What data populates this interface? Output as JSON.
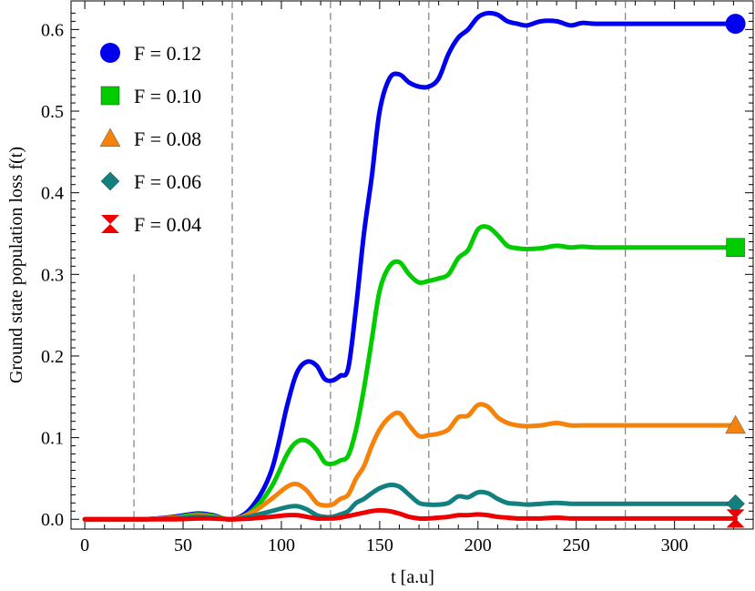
{
  "chart_data": {
    "type": "line",
    "title": "",
    "xlabel": "t  [a.u]",
    "ylabel": "Ground state population  loss  f(t)",
    "xlim": [
      -7,
      340
    ],
    "ylim": [
      -0.012,
      0.635
    ],
    "xticks": [
      0,
      50,
      100,
      150,
      200,
      250,
      300
    ],
    "xtick_labels": [
      "0",
      "50",
      "100",
      "150",
      "200",
      "250",
      "300"
    ],
    "yticks": [
      0.0,
      0.1,
      0.2,
      0.3,
      0.4,
      0.5,
      0.6
    ],
    "ytick_labels": [
      "0.0",
      "0.1",
      "0.2",
      "0.3",
      "0.4",
      "0.5",
      "0.6"
    ],
    "vlines": [
      25,
      75,
      125,
      175,
      225,
      275
    ],
    "grid": false,
    "legend_position": "top-left",
    "series": [
      {
        "name": "F = 0.12",
        "color": "#0000ee",
        "marker": "circle",
        "x": [
          0,
          30,
          45,
          57,
          65,
          75,
          85,
          95,
          103,
          108,
          113,
          118,
          122,
          126,
          130,
          134,
          138,
          142,
          146,
          150,
          155,
          160,
          165,
          170,
          175,
          180,
          185,
          190,
          195,
          200,
          205,
          210,
          215,
          220,
          225,
          232,
          240,
          247,
          253,
          260,
          280,
          300,
          331
        ],
        "values": [
          0.0,
          0.0,
          0.003,
          0.007,
          0.005,
          0.0,
          0.015,
          0.06,
          0.14,
          0.18,
          0.193,
          0.188,
          0.172,
          0.17,
          0.176,
          0.185,
          0.26,
          0.35,
          0.42,
          0.5,
          0.54,
          0.545,
          0.535,
          0.53,
          0.53,
          0.54,
          0.57,
          0.59,
          0.6,
          0.615,
          0.62,
          0.618,
          0.61,
          0.607,
          0.605,
          0.61,
          0.61,
          0.605,
          0.608,
          0.607,
          0.607,
          0.607,
          0.607
        ]
      },
      {
        "name": "F = 0.10",
        "color": "#00cc00",
        "marker": "square",
        "x": [
          0,
          30,
          45,
          57,
          65,
          75,
          85,
          95,
          103,
          108,
          113,
          118,
          122,
          126,
          130,
          134,
          138,
          142,
          146,
          150,
          155,
          160,
          165,
          170,
          175,
          180,
          185,
          190,
          195,
          200,
          205,
          210,
          215,
          220,
          225,
          232,
          240,
          247,
          253,
          260,
          280,
          300,
          331
        ],
        "values": [
          0.0,
          0.0,
          0.002,
          0.006,
          0.004,
          0.0,
          0.01,
          0.04,
          0.08,
          0.095,
          0.096,
          0.085,
          0.07,
          0.068,
          0.072,
          0.078,
          0.11,
          0.16,
          0.22,
          0.28,
          0.31,
          0.315,
          0.3,
          0.29,
          0.292,
          0.295,
          0.3,
          0.32,
          0.33,
          0.355,
          0.358,
          0.348,
          0.335,
          0.332,
          0.331,
          0.332,
          0.335,
          0.333,
          0.334,
          0.333,
          0.333,
          0.333,
          0.333
        ]
      },
      {
        "name": "F = 0.08",
        "color": "#f5820a",
        "marker": "triangle",
        "x": [
          0,
          30,
          45,
          57,
          65,
          75,
          85,
          95,
          103,
          108,
          113,
          118,
          122,
          126,
          130,
          134,
          138,
          142,
          146,
          150,
          155,
          160,
          165,
          170,
          175,
          180,
          185,
          190,
          195,
          200,
          205,
          210,
          215,
          220,
          225,
          232,
          240,
          247,
          253,
          260,
          280,
          300,
          331
        ],
        "values": [
          0.0,
          0.0,
          0.002,
          0.004,
          0.003,
          0.0,
          0.008,
          0.025,
          0.04,
          0.043,
          0.035,
          0.02,
          0.017,
          0.018,
          0.025,
          0.03,
          0.05,
          0.065,
          0.09,
          0.11,
          0.125,
          0.13,
          0.115,
          0.102,
          0.103,
          0.105,
          0.11,
          0.125,
          0.127,
          0.14,
          0.138,
          0.125,
          0.118,
          0.115,
          0.114,
          0.115,
          0.118,
          0.115,
          0.115,
          0.115,
          0.115,
          0.115,
          0.115
        ]
      },
      {
        "name": "F = 0.06",
        "color": "#12807e",
        "marker": "diamond",
        "x": [
          0,
          30,
          45,
          57,
          65,
          75,
          85,
          95,
          103,
          108,
          113,
          118,
          122,
          126,
          130,
          134,
          138,
          142,
          146,
          150,
          155,
          160,
          165,
          170,
          175,
          180,
          185,
          190,
          195,
          200,
          205,
          210,
          215,
          220,
          225,
          232,
          240,
          247,
          253,
          260,
          280,
          300,
          331
        ],
        "values": [
          0.0,
          0.0,
          0.001,
          0.003,
          0.002,
          0.0,
          0.004,
          0.01,
          0.015,
          0.016,
          0.012,
          0.005,
          0.003,
          0.003,
          0.006,
          0.01,
          0.02,
          0.025,
          0.032,
          0.038,
          0.042,
          0.04,
          0.03,
          0.02,
          0.018,
          0.018,
          0.02,
          0.028,
          0.027,
          0.033,
          0.032,
          0.025,
          0.02,
          0.019,
          0.018,
          0.019,
          0.02,
          0.019,
          0.019,
          0.019,
          0.019,
          0.019,
          0.019
        ]
      },
      {
        "name": "F = 0.04",
        "color": "#ee0000",
        "marker": "hourglass",
        "x": [
          0,
          30,
          45,
          57,
          65,
          75,
          85,
          95,
          103,
          108,
          113,
          118,
          122,
          126,
          130,
          134,
          138,
          142,
          146,
          150,
          155,
          160,
          165,
          170,
          175,
          180,
          185,
          190,
          195,
          200,
          205,
          210,
          215,
          220,
          225,
          232,
          240,
          247,
          253,
          260,
          280,
          300,
          331
        ],
        "values": [
          0.0,
          0.0,
          0.0,
          0.001,
          0.001,
          0.0,
          0.001,
          0.003,
          0.005,
          0.005,
          0.003,
          0.001,
          0.001,
          0.001,
          0.002,
          0.004,
          0.006,
          0.008,
          0.01,
          0.011,
          0.01,
          0.007,
          0.003,
          0.001,
          0.001,
          0.002,
          0.003,
          0.005,
          0.005,
          0.006,
          0.005,
          0.003,
          0.002,
          0.001,
          0.001,
          0.001,
          0.002,
          0.001,
          0.001,
          0.001,
          0.001,
          0.001,
          0.001
        ]
      }
    ]
  }
}
